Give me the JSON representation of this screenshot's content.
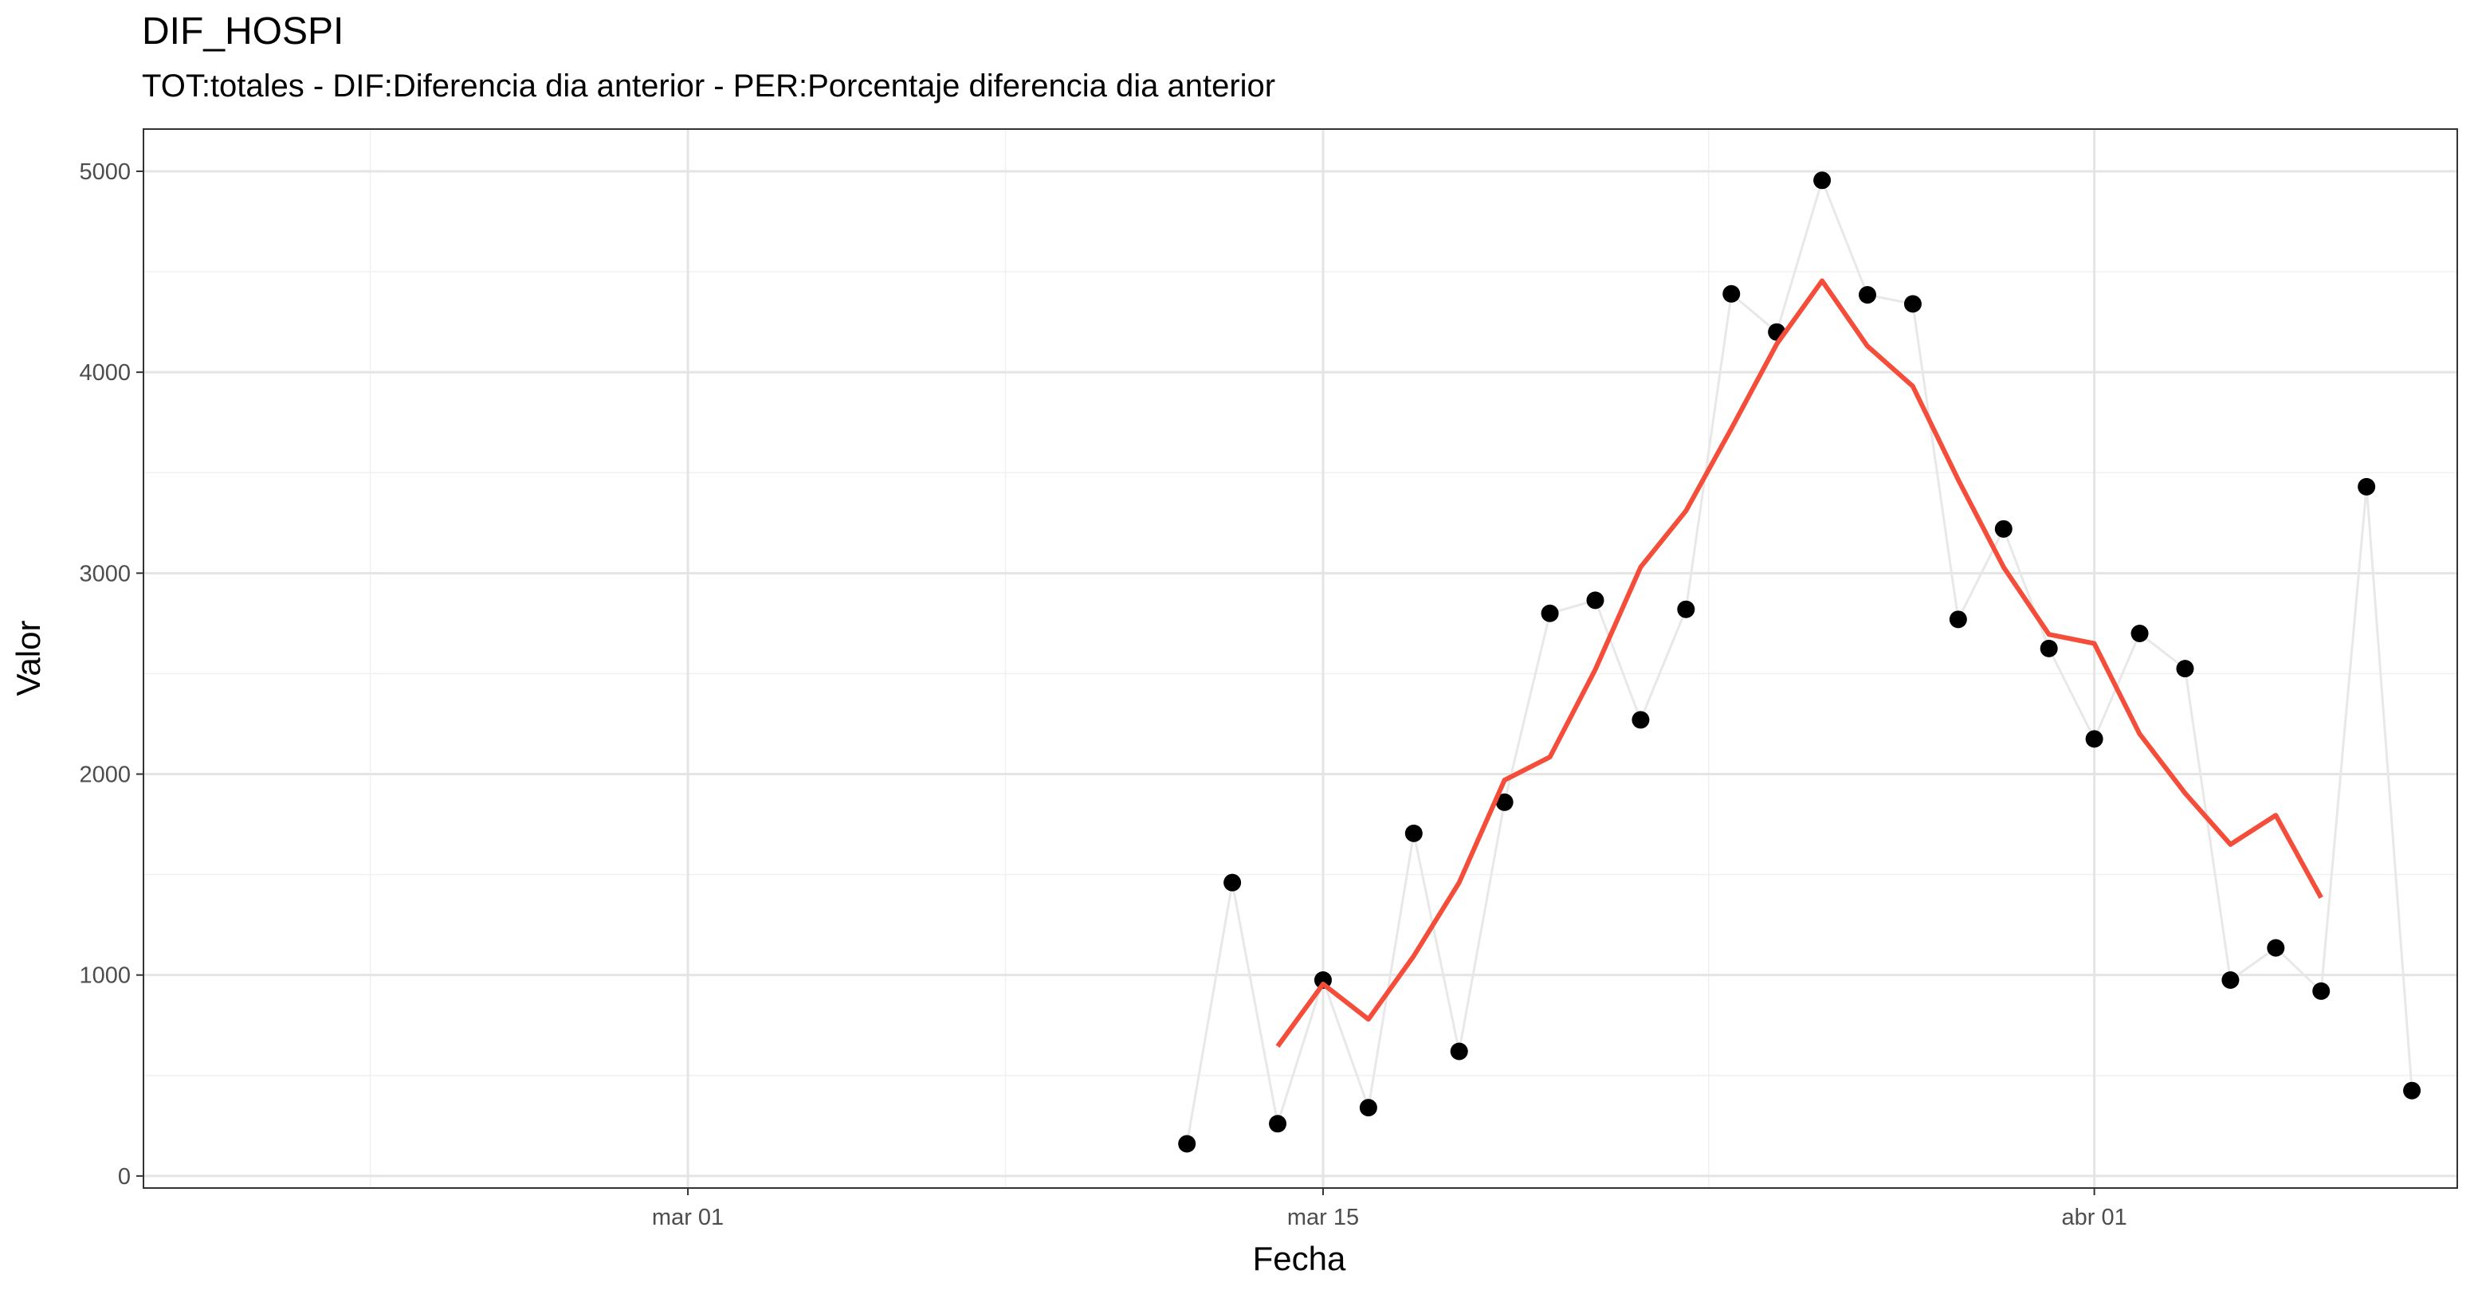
{
  "chart_data": {
    "type": "line",
    "title": "DIF_HOSPI",
    "subtitle": "TOT:totales - DIF:Diferencia dia anterior - PER:Porcentaje diferencia dia anterior",
    "xlabel": "Fecha",
    "ylabel": "Valor",
    "x_ticks": [
      "mar 01",
      "mar 15",
      "abr 01"
    ],
    "y_ticks": [
      0,
      1000,
      2000,
      3000,
      4000,
      5000
    ],
    "xlim": [
      "2020-02-18",
      "2020-04-09"
    ],
    "ylim": [
      -60,
      5210
    ],
    "grid": true,
    "series": [
      {
        "style": "points-with-thin-line",
        "color": "#000000",
        "line_color": "#e8e8e8",
        "points": [
          {
            "x": "2020-03-12",
            "y": 160
          },
          {
            "x": "2020-03-13",
            "y": 1460
          },
          {
            "x": "2020-03-14",
            "y": 260
          },
          {
            "x": "2020-03-15",
            "y": 975
          },
          {
            "x": "2020-03-16",
            "y": 340
          },
          {
            "x": "2020-03-17",
            "y": 1705
          },
          {
            "x": "2020-03-18",
            "y": 620
          },
          {
            "x": "2020-03-19",
            "y": 1860
          },
          {
            "x": "2020-03-20",
            "y": 2800
          },
          {
            "x": "2020-03-21",
            "y": 2865
          },
          {
            "x": "2020-03-22",
            "y": 2270
          },
          {
            "x": "2020-03-23",
            "y": 2820
          },
          {
            "x": "2020-03-24",
            "y": 4390
          },
          {
            "x": "2020-03-25",
            "y": 4200
          },
          {
            "x": "2020-03-26",
            "y": 4955
          },
          {
            "x": "2020-03-27",
            "y": 4385
          },
          {
            "x": "2020-03-28",
            "y": 4340
          },
          {
            "x": "2020-03-29",
            "y": 2770
          },
          {
            "x": "2020-03-30",
            "y": 3220
          },
          {
            "x": "2020-03-31",
            "y": 2625
          },
          {
            "x": "2020-04-01",
            "y": 2175
          },
          {
            "x": "2020-04-02",
            "y": 2700
          },
          {
            "x": "2020-04-03",
            "y": 2525
          },
          {
            "x": "2020-04-04",
            "y": 975
          },
          {
            "x": "2020-04-05",
            "y": 1135
          },
          {
            "x": "2020-04-06",
            "y": 920
          },
          {
            "x": "2020-04-07",
            "y": 3430
          },
          {
            "x": "2020-04-08",
            "y": 425
          }
        ]
      },
      {
        "style": "smooth-line",
        "color": "#f44e3b",
        "points": [
          {
            "x": "2020-03-14",
            "y": 645
          },
          {
            "x": "2020-03-15",
            "y": 955
          },
          {
            "x": "2020-03-16",
            "y": 780
          },
          {
            "x": "2020-03-17",
            "y": 1095
          },
          {
            "x": "2020-03-18",
            "y": 1460
          },
          {
            "x": "2020-03-19",
            "y": 1970
          },
          {
            "x": "2020-03-20",
            "y": 2085
          },
          {
            "x": "2020-03-21",
            "y": 2520
          },
          {
            "x": "2020-03-22",
            "y": 3030
          },
          {
            "x": "2020-03-23",
            "y": 3310
          },
          {
            "x": "2020-03-24",
            "y": 3720
          },
          {
            "x": "2020-03-25",
            "y": 4140
          },
          {
            "x": "2020-03-26",
            "y": 4455
          },
          {
            "x": "2020-03-27",
            "y": 4130
          },
          {
            "x": "2020-03-28",
            "y": 3930
          },
          {
            "x": "2020-03-29",
            "y": 3465
          },
          {
            "x": "2020-03-30",
            "y": 3030
          },
          {
            "x": "2020-03-31",
            "y": 2695
          },
          {
            "x": "2020-04-01",
            "y": 2650
          },
          {
            "x": "2020-04-02",
            "y": 2200
          },
          {
            "x": "2020-04-03",
            "y": 1905
          },
          {
            "x": "2020-04-04",
            "y": 1650
          },
          {
            "x": "2020-04-05",
            "y": 1795
          },
          {
            "x": "2020-04-06",
            "y": 1385
          }
        ]
      }
    ]
  }
}
